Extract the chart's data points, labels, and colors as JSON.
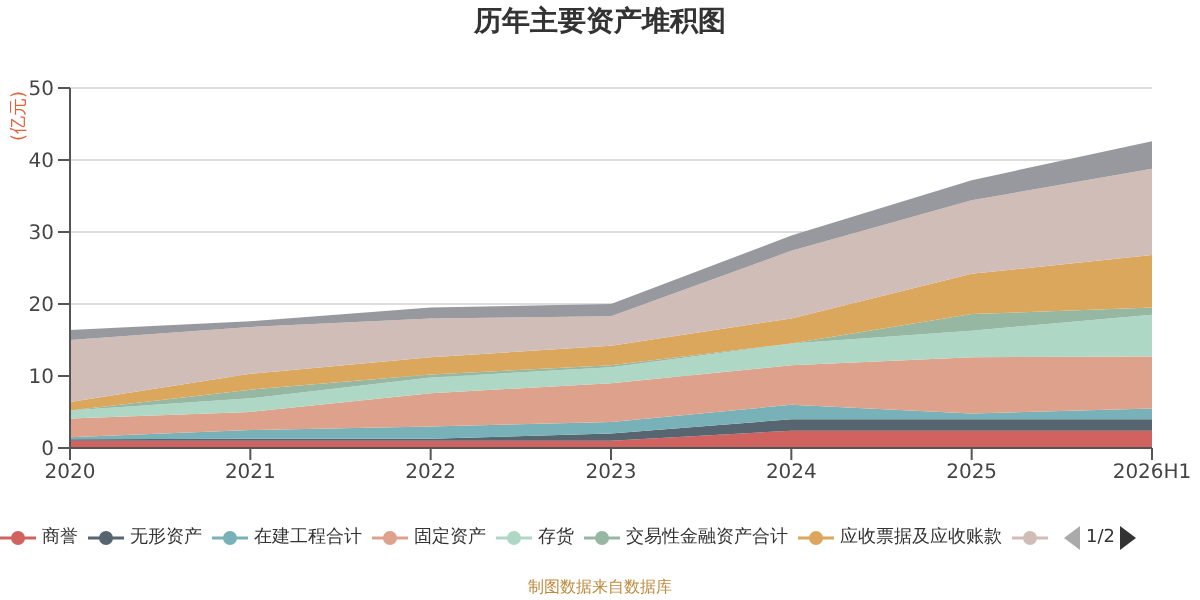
{
  "chart_data": {
    "type": "area",
    "title": "历年主要资产堆积图",
    "ylabel": "(亿元)",
    "stacked": true,
    "grid": "y",
    "legend": "bottom",
    "categories": [
      "2020",
      "2021",
      "2022",
      "2023",
      "2024",
      "2025",
      "2026H1"
    ],
    "ylim": [
      0,
      50
    ],
    "yticks": [
      0,
      10,
      20,
      30,
      40,
      50
    ],
    "series": [
      {
        "name": "商誉",
        "color": "#d0625f",
        "values": [
          1.0,
          1.0,
          1.0,
          1.0,
          2.4,
          2.4,
          2.4
        ]
      },
      {
        "name": "无形资产",
        "color": "#56656f",
        "values": [
          0.2,
          0.3,
          0.3,
          1.0,
          1.6,
          1.6,
          1.6
        ]
      },
      {
        "name": "在建工程合计",
        "color": "#79b1b8",
        "values": [
          0.3,
          1.2,
          1.7,
          1.6,
          2.0,
          0.8,
          1.5
        ]
      },
      {
        "name": "固定资产",
        "color": "#dea28c",
        "values": [
          2.6,
          2.5,
          4.6,
          5.4,
          5.5,
          7.8,
          7.2
        ]
      },
      {
        "name": "存货",
        "color": "#aed7c5",
        "values": [
          1.1,
          1.9,
          2.2,
          2.2,
          3.0,
          3.7,
          5.8
        ]
      },
      {
        "name": "交易性金融资产合计",
        "color": "#96b8a3",
        "values": [
          0,
          1.2,
          0.4,
          0.3,
          0,
          2.3,
          1.0
        ]
      },
      {
        "name": "应收票据及应收账款",
        "color": "#dba75c",
        "values": [
          1.2,
          2.2,
          2.4,
          2.7,
          3.5,
          5.6,
          7.3
        ]
      },
      {
        "color": "#d0bdb7",
        "values": [
          8.6,
          6.5,
          5.4,
          4.1,
          9.4,
          10.2,
          12.0
        ]
      },
      {
        "color": "#98999e",
        "values": [
          1.4,
          0.8,
          1.5,
          1.7,
          2.1,
          2.8,
          3.8
        ]
      }
    ],
    "annotations": [
      "1/2",
      "制图数据来自数据库"
    ]
  }
}
